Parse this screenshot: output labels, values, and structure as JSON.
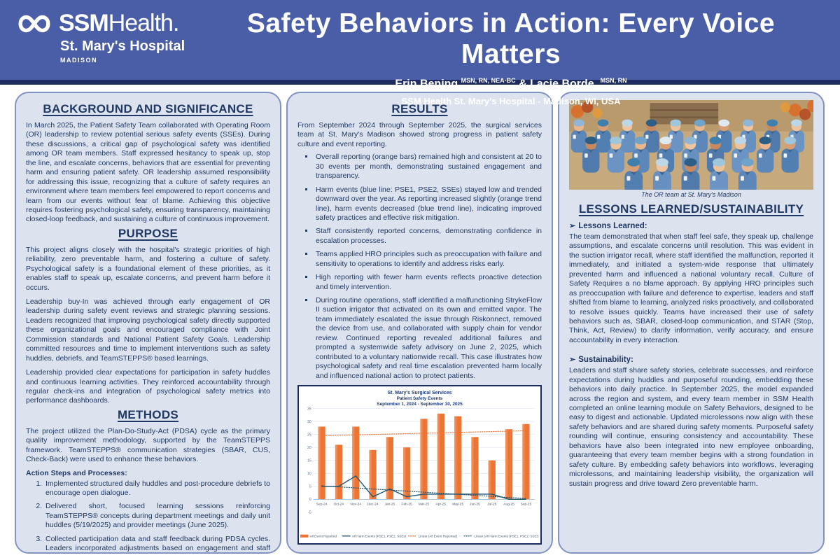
{
  "header": {
    "brand_bold": "SSM",
    "brand_light": "Health.",
    "hospital": "St. Mary's Hospital",
    "city": "MADISON",
    "title": "Safety Behaviors in Action: Every Voice Matters",
    "author1": "Erin Bening",
    "author1_creds": "MSN, RN, NEA-BC",
    "author_sep": " & ",
    "author2": "Lacie Borde,",
    "author2_creds": "MSN, RN",
    "affiliation": "SSM Health St. Mary's Hospital - Madison, WI, USA"
  },
  "background": {
    "heading": "BACKGROUND AND SIGNIFICANCE",
    "body": "In March 2025, the Patient Safety Team collaborated with Operating Room (OR) leadership to review potential serious safety events (SSEs). During these discussions, a critical gap of psychological safety was identified among OR team members. Staff expressed hesitancy to speak up, stop the line, and escalate concerns, behaviors that are essential for preventing harm and ensuring patient safety. OR leadership assumed responsibility for addressing this issue, recognizing that a culture of safety requires an environment where team members feel empowered to report concerns and learn from our events without fear of blame. Achieving this objective requires fostering psychological safety, ensuring transparency, maintaining closed-loop feedback, and sustaining a culture of continuous improvement."
  },
  "purpose": {
    "heading": "PURPOSE",
    "paragraphs": [
      "This project aligns closely with the hospital's strategic priorities of high reliability, zero preventable harm, and fostering a culture of safety. Psychological safety is a foundational element of these priorities, as it enables staff to speak up, escalate concerns, and prevent harm before it occurs.",
      "Leadership buy-In was achieved through early engagement of OR leadership during safety event reviews and strategic planning sessions. Leaders recognized that improving psychological safety directly supported these organizational goals and encouraged compliance with Joint Commission standards and National Patient Safety Goals. Leadership committed resources and time to implement interventions such as safety huddles, debriefs, and TeamSTEPPS® based learnings.",
      "Leadership provided clear expectations for participation in safety huddles and continuous learning activities. They reinforced accountability through regular check-ins and integration of psychological safety metrics into performance dashboards."
    ]
  },
  "methods": {
    "heading": "METHODS",
    "intro": "The project utilized the Plan-Do-Study-Act (PDSA) cycle as the primary quality improvement methodology, supported by the TeamSTEPPS framework. TeamSTEPPS® communication strategies (SBAR, CUS, Check-Back) were used to enhance these behaviors.",
    "action_label": "Action Steps and Processes:",
    "steps": [
      "Implemented structured daily huddles and post-procedure debriefs to encourage open dialogue.",
      "Delivered short, focused learning sessions reinforcing TeamSTEPPS® concepts during department meetings and daily unit huddles (5/19/2025) and provider meetings (June 2025).",
      "Collected participation data and staff feedback during PDSA cycles. Leaders incorporated adjustments based on engagement and staff feedback."
    ]
  },
  "results": {
    "heading": "RESULTS",
    "intro": "From September 2024 through September 2025, the surgical services team at St. Mary's Madison showed strong progress in patient safety culture and event reporting.",
    "bullets": [
      "Overall reporting (orange bars) remained high and consistent at 20 to 30 events per month, demonstrating sustained engagement and transparency.",
      "Harm events (blue line: PSE1, PSE2, SSEs) stayed low and trended downward over the year. As reporting increased slightly (orange trend line), harm events decreased (blue trend line), indicating improved safety practices and effective risk mitigation.",
      "Staff consistently reported concerns, demonstrating confidence in escalation processes.",
      "Teams applied HRO principles such as preoccupation with failure and sensitivity to operations to identify and address risks early.",
      "High reporting with fewer harm events reflects proactive detection and timely intervention.",
      "During routine operations, staff identified a malfunctioning StrykeFlow II suction irrigator that activated on its own and emitted vapor. The team immediately escalated the issue through Riskonnect, removed the device from use, and collaborated with supply chain for vendor review. Continued reporting revealed additional failures and prompted a systemwide safety advisory on June 2, 2025, which contributed to a voluntary nationwide recall. This case illustrates how psychological safety and real time escalation prevented harm locally and influenced national action to protect patients."
    ]
  },
  "photo": {
    "caption": "The OR team at St. Mary's Madison"
  },
  "lessons": {
    "heading": "LESSONS LEARNED/SUSTAINABILITY",
    "bullet_glyph": "➢",
    "lessons_label": "Lessons Learned:",
    "lessons_body": "The team demonstrated that when staff feel safe, they speak up, challenge assumptions, and escalate concerns until resolution. This was evident in the suction irrigator recall, where staff identified the malfunction, reported it immediately, and initiated a system-wide response that ultimately prevented harm and influenced a national voluntary recall. Culture of Safety Requires a no blame approach. By applying HRO principles such as preoccupation with failure and deference to expertise, leaders and staff shifted from blame to learning, analyzed risks proactively, and collaborated to resolve issues quickly. Teams have increased their use of safety behaviors such as, SBAR, closed-loop communication, and STAR (Stop, Think, Act, Review) to clarify information, verify accuracy, and ensure accountability in every interaction.",
    "sustainability_label": "Sustainability:",
    "sustainability_body": "Leaders and staff share safety stories, celebrate successes, and reinforce expectations during huddles and purposeful rounding, embedding these behaviors into daily practice. In September 2025, the model expanded across the region and system, and every team member in SSM Health completed an online learning module on Safety Behaviors, designed to be easy to digest and actionable. Updated microlessons now align with these safety behaviors and are shared during safety moments. Purposeful safety rounding will continue, ensuring consistency and accountability. These behaviors have also been integrated into new employee onboarding, guaranteeing that every team member begins with a strong foundation in safety culture. By embedding safety behaviors into workflows, leveraging microlessons, and maintaining leadership visibility, the organization will sustain progress and drive toward Zero preventable harm."
  },
  "chart_data": {
    "type": "bar",
    "title_lines": [
      "St. Mary's Surgical Services",
      "Patient Safety Events",
      "September 1, 2024 - September 30, 2025"
    ],
    "categories": [
      "Sep-24",
      "Oct-24",
      "Nov-24",
      "Dec-24",
      "Jan-25",
      "Feb-25",
      "Mar-25",
      "Apr-25",
      "May-25",
      "Jun-25",
      "Jul-25",
      "Aug-25",
      "Sep-25"
    ],
    "series": [
      {
        "name": "All Event Reported",
        "type": "bar",
        "color": "#ed7433",
        "values": [
          28,
          21,
          28,
          19,
          24,
          20,
          31,
          33,
          32,
          24,
          15,
          27,
          29
        ]
      },
      {
        "name": "All Harm Events (PSE1, PSE2, SSEs)",
        "type": "line",
        "color": "#1f5673",
        "values": [
          5,
          5,
          9,
          1,
          4,
          1,
          2,
          2,
          2,
          2,
          2,
          0,
          0
        ]
      },
      {
        "name": "Linear (All Event Reported)",
        "type": "trend",
        "color": "#ed7433",
        "start": 24.5,
        "end": 26.4
      },
      {
        "name": "Linear (All Harm Events (PSE1, PSE2, SSES))",
        "type": "trend",
        "color": "#1f5673",
        "start": 5.2,
        "end": 0.3
      }
    ],
    "ylim": [
      -5,
      35
    ],
    "ytick_step": 5,
    "grid": true,
    "legend_position": "bottom",
    "title_color": "#1b3a78"
  },
  "colors": {
    "header_blue": "#4a5ea8",
    "navy": "#1d2b5e",
    "text_navy": "#1f3864",
    "panel_bg": "#dde3ee",
    "panel_border": "#8193c2",
    "bar_orange": "#ed7433",
    "line_blue": "#1f5673"
  }
}
